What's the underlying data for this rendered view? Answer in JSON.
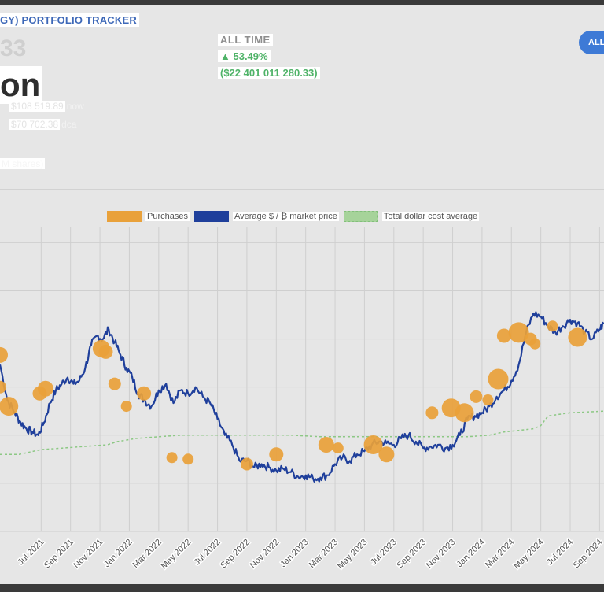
{
  "header": {
    "title": "GY) PORTFOLIO TRACKER",
    "value_fragment": "33",
    "value_word": "on",
    "price_now": "$108 519.89",
    "price_now_label": "now",
    "dca_price": "$70 702.38",
    "dca_label": "dca",
    "shares": "M shares)",
    "all_time_label": "ALL TIME",
    "all_time_pct": "▲ 53.49%",
    "all_time_amount": "($22 401 011 280.33)",
    "range_button": "ALL"
  },
  "colors": {
    "purchases": "#e9a13a",
    "price": "#1f3f9b",
    "dca": "#8cc884",
    "accent": "#3e7ad6"
  },
  "chart_data": {
    "type": "line",
    "title": "",
    "legend": [
      "Purchases",
      "Average $ / ₿ market price",
      "Total dollar cost average"
    ],
    "x_tick_labels": [
      "Jul 2021",
      "Sep 2021",
      "Nov 2021",
      "Jan 2022",
      "Mar 2022",
      "May 2022",
      "Jul 2022",
      "Sep 2022",
      "Nov 2022",
      "Jan 2023",
      "Mar 2023",
      "May 2023",
      "Jul 2023",
      "Sep 2023",
      "Nov 2023",
      "Jan 2024",
      "Mar 2024",
      "May 2024",
      "Jul 2024",
      "Sep 2024"
    ],
    "x_range_months": [
      -2.8,
      38.3
    ],
    "ylim": [
      0,
      95000
    ],
    "series": [
      {
        "name": "Average $ / ₿ market price",
        "x": [
          -2.8,
          -2.3,
          -1.8,
          -1.4,
          -1.0,
          -0.6,
          -0.2,
          0.2,
          0.6,
          1.0,
          1.4,
          1.8,
          2.2,
          2.6,
          3.0,
          3.4,
          3.8,
          4.2,
          4.6,
          5.0,
          5.4,
          5.8,
          6.2,
          6.6,
          7.0,
          7.5,
          8.0,
          8.5,
          9.0,
          9.5,
          10.0,
          10.5,
          11.0,
          11.5,
          12.0,
          12.5,
          13.0,
          13.5,
          14.0,
          14.5,
          15.0,
          15.5,
          16.0,
          16.5,
          17.0,
          17.5,
          18.0,
          18.5,
          19.0,
          19.5,
          20.0,
          20.5,
          21.0,
          21.5,
          22.0,
          22.5,
          23.0,
          23.5,
          24.0,
          24.5,
          25.0,
          25.5,
          26.0,
          26.5,
          27.0,
          27.5,
          28.0,
          28.5,
          29.0,
          29.5,
          30.0,
          30.5,
          31.0,
          31.5,
          32.0,
          32.5,
          33.0,
          33.5,
          34.0,
          34.5,
          35.0,
          35.5,
          36.0,
          36.5,
          37.0,
          37.5,
          38.0,
          38.3
        ],
        "values": [
          52000,
          41000,
          37000,
          34000,
          32000,
          31000,
          30000,
          34000,
          40000,
          44000,
          46000,
          48000,
          46000,
          47000,
          51000,
          58000,
          61000,
          60000,
          63000,
          59000,
          55000,
          51000,
          48000,
          43000,
          41000,
          39000,
          44000,
          46000,
          40000,
          44000,
          43000,
          45000,
          42000,
          40000,
          35000,
          30000,
          27000,
          22000,
          22000,
          20000,
          21000,
          20000,
          19000,
          19500,
          18500,
          17000,
          17500,
          16500,
          16800,
          17500,
          21000,
          23000,
          22000,
          24000,
          25000,
          27000,
          28000,
          27500,
          27000,
          29000,
          30000,
          28000,
          26000,
          26500,
          27000,
          26000,
          27000,
          30000,
          35000,
          36000,
          37000,
          39000,
          42000,
          44000,
          47000,
          52000,
          62000,
          68000,
          67000,
          64000,
          62000,
          64000,
          66000,
          65000,
          62000,
          60000,
          63000,
          65000
        ]
      },
      {
        "name": "Total dollar cost average",
        "x": [
          -2.8,
          -1.5,
          0.0,
          1.5,
          3.0,
          4.5,
          5.2,
          6.5,
          8.0,
          9.5,
          11.0,
          13.0,
          15.0,
          17.0,
          19.0,
          21.0,
          23.0,
          25.0,
          27.0,
          29.0,
          30.5,
          31.5,
          32.5,
          33.5,
          34.0,
          34.5,
          36.0,
          38.3
        ],
        "values": [
          24000,
          24000,
          25500,
          26000,
          26500,
          27000,
          28000,
          29000,
          29500,
          30000,
          30000,
          30000,
          30000,
          30000,
          29500,
          29500,
          29500,
          29500,
          29500,
          29500,
          30000,
          31000,
          31500,
          32000,
          33000,
          36000,
          37000,
          37500
        ]
      },
      {
        "name": "Purchases",
        "type": "scatter",
        "x": [
          -2.8,
          -2.8,
          -2.2,
          -0.1,
          0.3,
          4.1,
          4.4,
          5.0,
          5.8,
          7.0,
          8.9,
          10.0,
          14.0,
          16.0,
          19.4,
          20.2,
          22.6,
          23.5,
          26.6,
          27.9,
          28.8,
          29.6,
          30.4,
          31.1,
          31.5,
          32.5,
          33.3,
          33.6,
          34.8,
          36.5
        ],
        "values": [
          55000,
          45000,
          39000,
          43000,
          44500,
          57000,
          56000,
          46000,
          39000,
          43000,
          23000,
          22500,
          21000,
          24000,
          27000,
          26000,
          27000,
          24000,
          37000,
          38500,
          37000,
          42000,
          41000,
          47500,
          61000,
          62000,
          60000,
          58500,
          64000,
          60500
        ]
      }
    ]
  }
}
